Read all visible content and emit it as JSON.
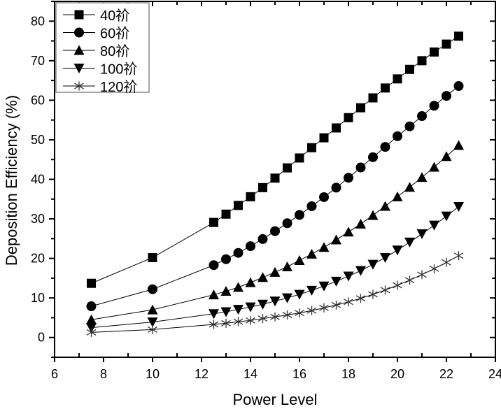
{
  "chart_data": {
    "type": "line",
    "title": "",
    "xlabel": "Power Level",
    "ylabel": "Deposition Efficiency (%)",
    "xlim": [
      6,
      24
    ],
    "ylim": [
      -5,
      85
    ],
    "xticks": [
      6,
      8,
      10,
      12,
      14,
      16,
      18,
      20,
      22,
      24
    ],
    "yticks": [
      0,
      10,
      20,
      30,
      40,
      50,
      60,
      70,
      80
    ],
    "grid": false,
    "legend_position": "top-left",
    "x": [
      7.5,
      10,
      12.5,
      13,
      13.5,
      14,
      14.5,
      15,
      15.5,
      16,
      16.5,
      17,
      17.5,
      18,
      18.5,
      19,
      19.5,
      20,
      20.5,
      21,
      21.5,
      22,
      22.5
    ],
    "series": [
      {
        "name": "40祄",
        "marker": "square",
        "values": [
          13.7,
          20.2,
          29.1,
          31.2,
          33.4,
          35.6,
          37.9,
          40.3,
          42.9,
          45.4,
          48.0,
          50.5,
          53.0,
          55.6,
          58.1,
          60.6,
          63.1,
          65.4,
          67.8,
          70.0,
          72.2,
          74.2,
          76.2
        ]
      },
      {
        "name": "60祄",
        "marker": "circle",
        "values": [
          7.9,
          12.2,
          18.3,
          19.8,
          21.4,
          23.1,
          24.9,
          26.9,
          28.9,
          31.0,
          33.2,
          35.5,
          37.9,
          40.4,
          43.0,
          45.6,
          48.2,
          50.9,
          53.4,
          56.0,
          58.6,
          61.1,
          63.6
        ]
      },
      {
        "name": "80祄",
        "marker": "triangle-up",
        "values": [
          4.5,
          7.0,
          10.8,
          11.7,
          12.7,
          13.9,
          15.2,
          16.5,
          17.9,
          19.5,
          21.1,
          22.8,
          24.7,
          26.7,
          28.7,
          30.9,
          33.2,
          35.6,
          38.0,
          40.5,
          43.1,
          45.8,
          48.6
        ]
      },
      {
        "name": "100祄",
        "marker": "triangle-down",
        "values": [
          2.5,
          3.9,
          6.0,
          6.5,
          7.1,
          7.7,
          8.4,
          9.2,
          10.0,
          10.9,
          11.9,
          13.0,
          14.2,
          15.5,
          16.9,
          18.5,
          20.2,
          22.1,
          24.1,
          26.2,
          28.4,
          30.7,
          33.1
        ]
      },
      {
        "name": "120祄",
        "marker": "asterisk",
        "values": [
          1.3,
          2.0,
          3.3,
          3.6,
          4.0,
          4.3,
          4.8,
          5.2,
          5.7,
          6.2,
          6.8,
          7.5,
          8.2,
          9.0,
          9.9,
          10.9,
          12.0,
          13.2,
          14.5,
          15.9,
          17.4,
          19.0,
          20.7
        ]
      }
    ],
    "colors": {
      "line": "#000000",
      "asterisk": "#333333",
      "legend_border": "#888888"
    }
  }
}
